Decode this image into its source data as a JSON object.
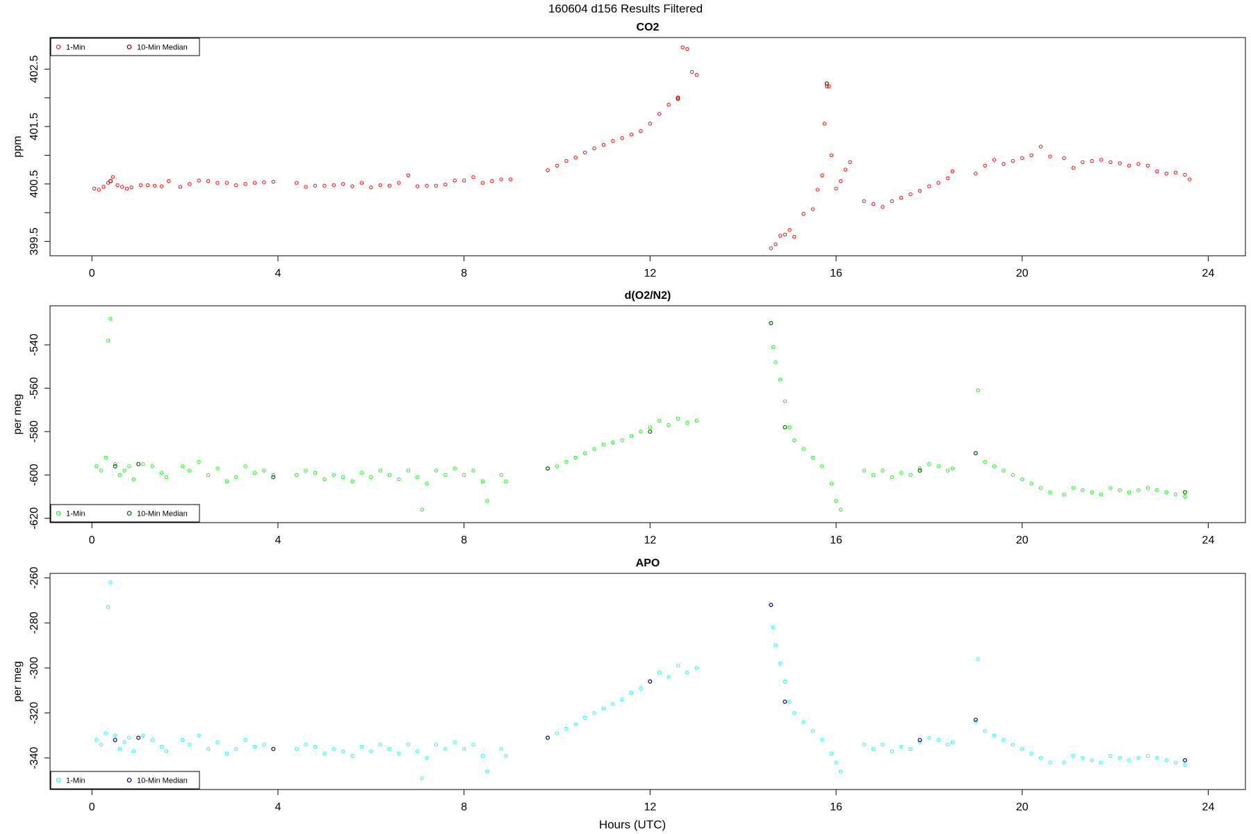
{
  "figure": {
    "title": "160604   d156   Results Filtered",
    "xlabel": "Hours (UTC)"
  },
  "chart_data": [
    {
      "id": "co2",
      "type": "scatter",
      "title": "CO2",
      "xlabel": "",
      "ylabel": "ppm",
      "xlim": [
        -0.9,
        24.8
      ],
      "ylim": [
        399.25,
        403.05
      ],
      "xticks": [
        0,
        4,
        8,
        12,
        16,
        20,
        24
      ],
      "yticks": [
        399.5,
        400.0,
        400.5,
        401.0,
        401.5,
        402.0,
        402.5
      ],
      "ytick_labels": [
        "399.5",
        "",
        "400.5",
        "",
        "401.5",
        "",
        "402.5"
      ],
      "legend": {
        "position": "top-left",
        "entries": [
          "1-Min",
          "10-Min Median"
        ]
      },
      "colors": {
        "one_min": "#ff0000",
        "median": "#8b0000"
      },
      "series": [
        {
          "name": "1-Min",
          "x": [
            0.05,
            0.15,
            0.25,
            0.35,
            0.45,
            0.55,
            0.65,
            0.75,
            0.85,
            1.05,
            1.2,
            1.35,
            1.5,
            1.65,
            1.9,
            2.1,
            2.3,
            2.5,
            2.7,
            2.9,
            3.1,
            3.3,
            3.5,
            3.7,
            3.9,
            4.4,
            4.6,
            4.8,
            5.0,
            5.2,
            5.4,
            5.6,
            5.8,
            6.0,
            6.2,
            6.4,
            6.6,
            6.8,
            7.0,
            7.2,
            7.4,
            7.6,
            7.8,
            8.0,
            8.2,
            8.4,
            8.6,
            8.8,
            9.0,
            9.8,
            10.0,
            10.2,
            10.4,
            10.6,
            10.8,
            11.0,
            11.2,
            11.4,
            11.6,
            11.8,
            12.0,
            12.2,
            12.4,
            12.6,
            12.7,
            12.8,
            12.9,
            13.0,
            14.6,
            14.7,
            14.8,
            14.9,
            15.0,
            15.1,
            15.3,
            15.5,
            15.6,
            15.7,
            15.75,
            15.8,
            15.85,
            15.9,
            16.0,
            16.1,
            16.2,
            16.3,
            16.6,
            16.8,
            17.0,
            17.2,
            17.4,
            17.6,
            17.8,
            18.0,
            18.2,
            18.4,
            18.5,
            19.0,
            19.2,
            19.4,
            19.6,
            19.8,
            20.0,
            20.2,
            20.4,
            20.6,
            20.9,
            21.1,
            21.3,
            21.5,
            21.7,
            21.9,
            22.1,
            22.3,
            22.5,
            22.7,
            22.9,
            23.1,
            23.3,
            23.5,
            23.6
          ],
          "y": [
            400.42,
            400.4,
            400.45,
            400.52,
            400.62,
            400.48,
            400.45,
            400.42,
            400.44,
            400.48,
            400.48,
            400.47,
            400.46,
            400.55,
            400.45,
            400.5,
            400.56,
            400.55,
            400.52,
            400.52,
            400.48,
            400.5,
            400.52,
            400.53,
            400.54,
            400.52,
            400.45,
            400.47,
            400.47,
            400.48,
            400.5,
            400.46,
            400.52,
            400.44,
            400.48,
            400.47,
            400.52,
            400.65,
            400.46,
            400.47,
            400.47,
            400.49,
            400.56,
            400.56,
            400.62,
            400.52,
            400.55,
            400.58,
            400.58,
            400.74,
            400.82,
            400.9,
            400.96,
            401.05,
            401.12,
            401.18,
            401.25,
            401.3,
            401.36,
            401.42,
            401.55,
            401.72,
            401.88,
            401.98,
            402.88,
            402.85,
            402.45,
            402.4,
            399.38,
            399.45,
            399.6,
            399.62,
            399.7,
            399.58,
            399.98,
            400.06,
            400.4,
            400.65,
            401.55,
            402.2,
            402.2,
            401.0,
            400.42,
            400.55,
            400.75,
            400.88,
            400.2,
            400.15,
            400.1,
            400.2,
            400.26,
            400.32,
            400.38,
            400.46,
            400.52,
            400.6,
            400.72,
            400.68,
            400.82,
            400.92,
            400.85,
            400.9,
            400.95,
            401.0,
            401.15,
            400.98,
            400.95,
            400.78,
            400.88,
            400.9,
            400.92,
            400.88,
            400.86,
            400.82,
            400.85,
            400.82,
            400.72,
            400.68,
            400.7,
            400.66,
            400.58
          ]
        },
        {
          "name": "10-Min Median",
          "x": [
            0.4,
            12.6,
            15.8
          ],
          "y": [
            400.55,
            402.0,
            402.25
          ]
        }
      ]
    },
    {
      "id": "do2n2",
      "type": "scatter",
      "title": "d(O2/N2)",
      "xlabel": "",
      "ylabel": "per meg",
      "xlim": [
        -0.9,
        24.8
      ],
      "ylim": [
        -622,
        -522
      ],
      "xticks": [
        0,
        4,
        8,
        12,
        16,
        20,
        24
      ],
      "yticks": [
        -620,
        -600,
        -580,
        -560,
        -540
      ],
      "ytick_labels": [
        "-620",
        "-600",
        "-580",
        "-560",
        "-540"
      ],
      "legend": {
        "position": "bottom-left",
        "entries": [
          "1-Min",
          "10-Min Median"
        ]
      },
      "colors": {
        "one_min": "#00ff00",
        "median": "#006400"
      },
      "series": [
        {
          "name": "1-Min",
          "x": [
            0.1,
            0.2,
            0.3,
            0.35,
            0.4,
            0.5,
            0.6,
            0.7,
            0.8,
            0.9,
            1.1,
            1.3,
            1.5,
            1.6,
            1.95,
            2.1,
            2.3,
            2.5,
            2.7,
            2.9,
            3.1,
            3.3,
            3.5,
            3.7,
            3.9,
            4.4,
            4.6,
            4.8,
            5.0,
            5.2,
            5.4,
            5.6,
            5.8,
            6.0,
            6.2,
            6.4,
            6.6,
            6.8,
            7.0,
            7.1,
            7.2,
            7.4,
            7.6,
            7.8,
            8.0,
            8.2,
            8.4,
            8.5,
            8.8,
            8.9,
            9.8,
            10.0,
            10.2,
            10.4,
            10.6,
            10.8,
            11.0,
            11.2,
            11.4,
            11.6,
            11.8,
            12.0,
            12.2,
            12.4,
            12.6,
            12.8,
            13.0,
            14.6,
            14.65,
            14.7,
            14.8,
            14.9,
            15.0,
            15.1,
            15.3,
            15.5,
            15.7,
            15.9,
            16.0,
            16.1,
            16.6,
            16.8,
            17.0,
            17.2,
            17.4,
            17.6,
            17.8,
            18.0,
            18.2,
            18.4,
            18.5,
            19.0,
            19.05,
            19.2,
            19.4,
            19.6,
            19.8,
            20.0,
            20.2,
            20.4,
            20.6,
            20.9,
            21.1,
            21.3,
            21.5,
            21.7,
            21.9,
            22.1,
            22.3,
            22.5,
            22.7,
            22.9,
            23.1,
            23.3,
            23.5
          ],
          "y": [
            -596,
            -598,
            -592,
            -538,
            -528,
            -595,
            -600,
            -598,
            -596,
            -602,
            -595,
            -596,
            -599,
            -601,
            -596,
            -598,
            -594,
            -600,
            -597,
            -603,
            -601,
            -596,
            -599,
            -598,
            -600,
            -600,
            -598,
            -599,
            -602,
            -600,
            -601,
            -603,
            -599,
            -601,
            -598,
            -600,
            -602,
            -598,
            -601,
            -616,
            -604,
            -598,
            -600,
            -597,
            -600,
            -598,
            -603,
            -612,
            -600,
            -603,
            -597,
            -596,
            -594,
            -592,
            -590,
            -588,
            -586,
            -585,
            -584,
            -582,
            -580,
            -578,
            -575,
            -577,
            -574,
            -576,
            -575,
            -530,
            -541,
            -548,
            -556,
            -566,
            -578,
            -584,
            -588,
            -592,
            -596,
            -604,
            -612,
            -616,
            -598,
            -600,
            -598,
            -601,
            -599,
            -600,
            -597,
            -595,
            -596,
            -598,
            -597,
            -590,
            -561,
            -594,
            -596,
            -598,
            -600,
            -602,
            -604,
            -606,
            -608,
            -609,
            -606,
            -607,
            -608,
            -609,
            -606,
            -607,
            -608,
            -607,
            -606,
            -607,
            -608,
            -609,
            -610
          ]
        },
        {
          "name": "10-Min Median",
          "x": [
            0.5,
            1.0,
            3.9,
            9.8,
            12.0,
            14.6,
            14.9,
            17.8,
            19.0,
            23.5
          ],
          "y": [
            -596,
            -595,
            -601,
            -597,
            -580,
            -530,
            -578,
            -598,
            -590,
            -608
          ]
        }
      ]
    },
    {
      "id": "apo",
      "type": "scatter",
      "title": "APO",
      "xlabel": "Hours (UTC)",
      "ylabel": "per meg",
      "xlim": [
        -0.9,
        24.8
      ],
      "ylim": [
        -354,
        -258
      ],
      "xticks": [
        0,
        4,
        8,
        12,
        16,
        20,
        24
      ],
      "yticks": [
        -340,
        -320,
        -300,
        -280,
        -260
      ],
      "ytick_labels": [
        "-340",
        "-320",
        "-300",
        "-280",
        "-260"
      ],
      "legend": {
        "position": "bottom-left",
        "entries": [
          "1-Min",
          "10-Min Median"
        ]
      },
      "colors": {
        "one_min": "#00ffff",
        "median": "#00008b"
      },
      "series": [
        {
          "name": "1-Min",
          "x": [
            0.1,
            0.2,
            0.3,
            0.35,
            0.4,
            0.5,
            0.6,
            0.7,
            0.8,
            0.9,
            1.1,
            1.3,
            1.5,
            1.6,
            1.95,
            2.1,
            2.3,
            2.5,
            2.7,
            2.9,
            3.1,
            3.3,
            3.5,
            3.7,
            3.9,
            4.4,
            4.6,
            4.8,
            5.0,
            5.2,
            5.4,
            5.6,
            5.8,
            6.0,
            6.2,
            6.4,
            6.6,
            6.8,
            7.0,
            7.1,
            7.2,
            7.4,
            7.6,
            7.8,
            8.0,
            8.2,
            8.4,
            8.5,
            8.8,
            8.9,
            9.8,
            10.0,
            10.2,
            10.4,
            10.6,
            10.8,
            11.0,
            11.2,
            11.4,
            11.6,
            11.8,
            12.0,
            12.2,
            12.4,
            12.6,
            12.8,
            13.0,
            14.6,
            14.65,
            14.7,
            14.8,
            14.9,
            15.0,
            15.1,
            15.3,
            15.5,
            15.7,
            15.9,
            16.0,
            16.1,
            16.6,
            16.8,
            17.0,
            17.2,
            17.4,
            17.6,
            17.8,
            18.0,
            18.2,
            18.4,
            18.5,
            19.0,
            19.05,
            19.2,
            19.4,
            19.6,
            19.8,
            20.0,
            20.2,
            20.4,
            20.6,
            20.9,
            21.1,
            21.3,
            21.5,
            21.7,
            21.9,
            22.1,
            22.3,
            22.5,
            22.7,
            22.9,
            23.1,
            23.3,
            23.5
          ],
          "y": [
            -332,
            -334,
            -329,
            -273,
            -262,
            -330,
            -336,
            -333,
            -331,
            -337,
            -330,
            -332,
            -335,
            -337,
            -332,
            -334,
            -330,
            -336,
            -333,
            -338,
            -336,
            -332,
            -335,
            -334,
            -336,
            -336,
            -334,
            -335,
            -338,
            -336,
            -337,
            -339,
            -335,
            -337,
            -334,
            -336,
            -338,
            -334,
            -337,
            -349,
            -340,
            -334,
            -336,
            -333,
            -336,
            -334,
            -339,
            -346,
            -336,
            -339,
            -331,
            -329,
            -327,
            -325,
            -322,
            -320,
            -318,
            -316,
            -314,
            -311,
            -309,
            -306,
            -302,
            -304,
            -299,
            -302,
            -300,
            -272,
            -282,
            -290,
            -298,
            -306,
            -315,
            -320,
            -324,
            -328,
            -332,
            -338,
            -342,
            -346,
            -334,
            -336,
            -334,
            -337,
            -335,
            -336,
            -333,
            -331,
            -332,
            -334,
            -333,
            -324,
            -296,
            -328,
            -330,
            -332,
            -334,
            -336,
            -338,
            -340,
            -342,
            -342,
            -339,
            -340,
            -341,
            -342,
            -339,
            -340,
            -341,
            -340,
            -339,
            -340,
            -341,
            -342,
            -343
          ]
        },
        {
          "name": "10-Min Median",
          "x": [
            0.5,
            1.0,
            3.9,
            9.8,
            12.0,
            14.6,
            14.9,
            17.8,
            19.0,
            23.5
          ],
          "y": [
            -332,
            -331,
            -336,
            -331,
            -306,
            -272,
            -315,
            -332,
            -323,
            -341
          ]
        }
      ]
    }
  ]
}
